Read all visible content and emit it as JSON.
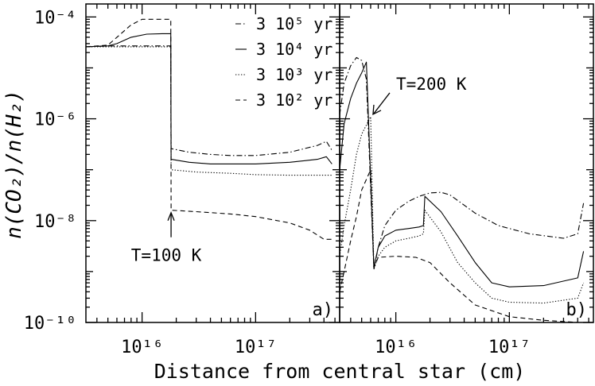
{
  "figure": {
    "xlabel": "Distance from central star (cm)",
    "ylabel": "n(CO₂)/n(H₂)",
    "legend": {
      "placement": "top-right of panel a",
      "entries": [
        {
          "label": "3 10⁵ yr",
          "style": "dash-dot"
        },
        {
          "label": "3 10⁴ yr",
          "style": "solid"
        },
        {
          "label": "3 10³ yr",
          "style": "dotted"
        },
        {
          "label": "3 10² yr",
          "style": "dashed"
        }
      ]
    },
    "y_ticks": [
      "10⁻¹⁰",
      "10⁻⁸",
      "10⁻⁶",
      "10⁻⁴"
    ],
    "x_ticks": [
      "10¹⁶",
      "10¹⁷"
    ]
  },
  "chart_data": [
    {
      "type": "line",
      "panel_label": "a)",
      "x_scale": "log",
      "y_scale": "log",
      "xlim": [
        3200000000000000.0,
        5.5e+17
      ],
      "ylim": [
        1e-10,
        0.00018
      ],
      "grid": false,
      "annotation": {
        "text": "T=100 K",
        "x": 1.8e+16,
        "y": 1.6e-08,
        "arrow": true
      },
      "series": [
        {
          "name": "3 10⁵ yr",
          "style": "dash-dot",
          "x": [
            3200000000000000.0,
            5000000000000000.0,
            7000000000000000.0,
            1.5e+16,
            1.79e+16,
            1.8e+16,
            2.6e+16,
            4e+16,
            6e+16,
            1e+17,
            2e+17,
            3.5e+17,
            4.2e+17,
            4.7e+17
          ],
          "y": [
            2.6e-05,
            2.7e-05,
            2.7e-05,
            2.7e-05,
            2.7e-05,
            2.6e-07,
            2.2e-07,
            2e-07,
            1.9e-07,
            1.9e-07,
            2.2e-07,
            3e-07,
            3.6e-07,
            2.4e-07
          ]
        },
        {
          "name": "3 10⁴ yr",
          "style": "solid",
          "x": [
            3200000000000000.0,
            5000000000000000.0,
            6000000000000000.0,
            8000000000000000.0,
            1.1e+16,
            1.5e+16,
            1.79e+16,
            1.8e+16,
            2.6e+16,
            4e+16,
            6e+16,
            1e+17,
            2e+17,
            3.5e+17,
            4.2e+17,
            4.7e+17
          ],
          "y": [
            2.6e-05,
            2.7e-05,
            3e-05,
            4e-05,
            4.6e-05,
            4.7e-05,
            4.7e-05,
            1.6e-07,
            1.4e-07,
            1.3e-07,
            1.3e-07,
            1.3e-07,
            1.4e-07,
            1.6e-07,
            1.8e-07,
            1.3e-07
          ]
        },
        {
          "name": "3 10³ yr",
          "style": "dotted",
          "x": [
            3200000000000000.0,
            5000000000000000.0,
            1.5e+16,
            1.79e+16,
            1.8e+16,
            3e+16,
            6e+16,
            1e+17,
            2e+17,
            4.7e+17
          ],
          "y": [
            2.6e-05,
            2.6e-05,
            2.6e-05,
            2.6e-05,
            1e-07,
            9e-08,
            8.5e-08,
            8e-08,
            7.8e-08,
            7.8e-08
          ]
        },
        {
          "name": "3 10² yr",
          "style": "dashed",
          "x": [
            3200000000000000.0,
            5000000000000000.0,
            6000000000000000.0,
            8000000000000000.0,
            1e+16,
            1.5e+16,
            1.79e+16,
            1.8e+16,
            3e+16,
            6e+16,
            1e+17,
            2e+17,
            3e+17,
            4e+17,
            4.7e+17
          ],
          "y": [
            2.6e-05,
            2.8e-05,
            4e-05,
            7e-05,
            9e-05,
            9e-05,
            9e-05,
            1.6e-08,
            1.5e-08,
            1.35e-08,
            1.2e-08,
            9e-09,
            6.5e-09,
            4.3e-09,
            4.3e-09
          ]
        }
      ]
    },
    {
      "type": "line",
      "panel_label": "b)",
      "x_scale": "log",
      "y_scale": "log",
      "xlim": [
        3200000000000000.0,
        5.5e+17
      ],
      "ylim": [
        1e-10,
        0.00018
      ],
      "grid": false,
      "annotation": {
        "text": "T=200 K",
        "x": 6000000000000000.0,
        "y": 1.1e-06,
        "arrow": true
      },
      "series": [
        {
          "name": "3 10⁵ yr",
          "style": "dash-dot",
          "x": [
            3200000000000000.0,
            3500000000000000.0,
            4000000000000000.0,
            4500000000000000.0,
            5000000000000000.0,
            5500000000000000.0,
            6400000000000000.0,
            7000000000000000.0,
            8000000000000000.0,
            1e+16,
            1.3e+16,
            1.6e+16,
            2e+16,
            2.5e+16,
            3e+16,
            5e+16,
            8e+16,
            1.5e+17,
            3e+17,
            4e+17,
            4.5e+17
          ],
          "y": [
            1.2e-06,
            5e-06,
            1.1e-05,
            1.6e-05,
            1.4e-05,
            6e-06,
            1.1e-09,
            3e-09,
            8e-09,
            1.6e-08,
            2.4e-08,
            3e-08,
            3.5e-08,
            3.6e-08,
            3.2e-08,
            1.4e-08,
            8e-09,
            5.5e-09,
            4.5e-09,
            5.5e-09,
            2.2e-08
          ]
        },
        {
          "name": "3 10⁴ yr",
          "style": "solid",
          "x": [
            3200000000000000.0,
            3500000000000000.0,
            4000000000000000.0,
            4500000000000000.0,
            5000000000000000.0,
            5500000000000000.0,
            6400000000000000.0,
            7000000000000000.0,
            8000000000000000.0,
            1e+16,
            1.3e+16,
            1.6e+16,
            1.75e+16,
            1.8e+16,
            2.5e+16,
            3.5e+16,
            5e+16,
            7e+16,
            1e+17,
            2e+17,
            4e+17,
            4.5e+17
          ],
          "y": [
            1e-07,
            8e-07,
            2.5e-06,
            5e-06,
            8e-06,
            1.3e-05,
            1.2e-09,
            3e-09,
            5e-09,
            6.5e-09,
            7e-09,
            7.5e-09,
            8e-09,
            3e-08,
            1.5e-08,
            5e-09,
            1.5e-09,
            6e-10,
            5e-10,
            5.3e-10,
            7.5e-10,
            2.5e-09
          ]
        },
        {
          "name": "3 10³ yr",
          "style": "dotted",
          "x": [
            3200000000000000.0,
            3500000000000000.0,
            4000000000000000.0,
            4500000000000000.0,
            5000000000000000.0,
            6000000000000000.0,
            6400000000000000.0,
            7000000000000000.0,
            8000000000000000.0,
            1e+16,
            1.3e+16,
            1.6e+16,
            1.75e+16,
            1.8e+16,
            2.5e+16,
            3.5e+16,
            5e+16,
            7e+16,
            1e+17,
            2e+17,
            4e+17,
            4.5e+17
          ],
          "y": [
            2e-09,
            8e-09,
            4e-08,
            2e-07,
            5e-07,
            1.1e-06,
            1.1e-09,
            2e-09,
            3e-09,
            4e-09,
            4.5e-09,
            5e-09,
            5.5e-09,
            1.6e-08,
            6e-09,
            1.5e-09,
            6e-10,
            3e-10,
            2.5e-10,
            2.4e-10,
            3e-10,
            6e-10
          ]
        },
        {
          "name": "3 10² yr",
          "style": "dashed",
          "x": [
            3200000000000000.0,
            3500000000000000.0,
            4000000000000000.0,
            4500000000000000.0,
            5000000000000000.0,
            6000000000000000.0,
            6400000000000000.0,
            7000000000000000.0,
            1e+16,
            1.5e+16,
            2e+16,
            3e+16,
            5e+16,
            1e+17,
            2e+17,
            4e+17
          ],
          "y": [
            4e-10,
            1e-09,
            4e-09,
            1.2e-08,
            4e-08,
            1e-07,
            1.2e-09,
            1.9e-09,
            2e-09,
            1.9e-09,
            1.5e-09,
            6e-10,
            2.2e-10,
            1.3e-10,
            1.1e-10,
            1e-10
          ]
        }
      ]
    }
  ]
}
